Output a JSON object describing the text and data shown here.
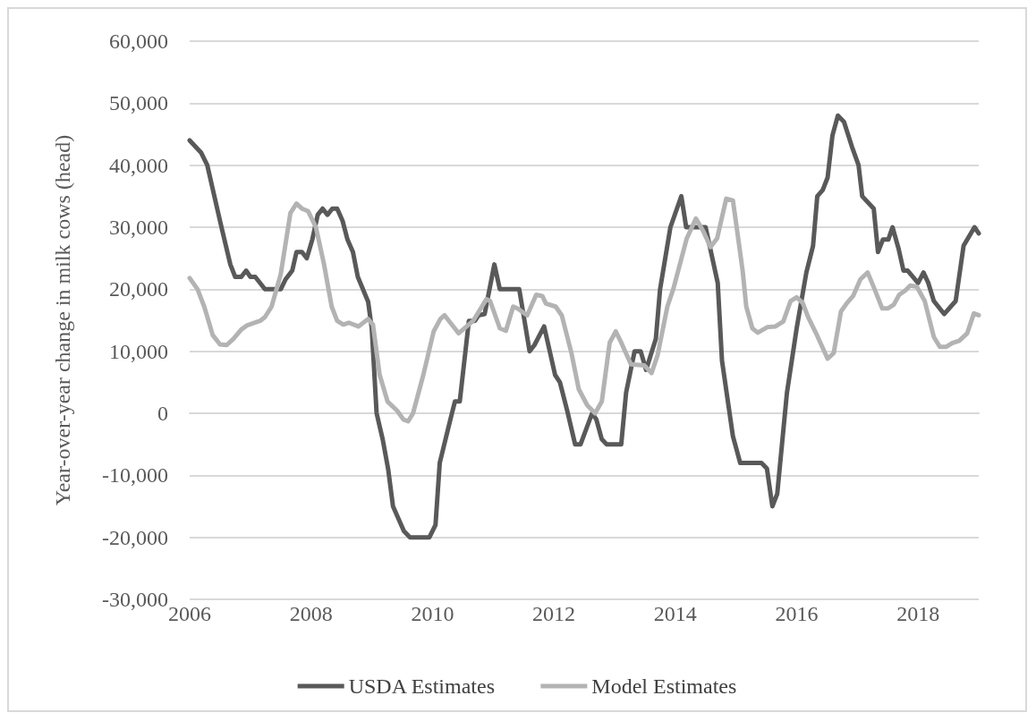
{
  "chart_data": {
    "type": "line",
    "ylabel": "Year-over-year change in milk cows (head)",
    "xlim": [
      2006,
      2019
    ],
    "xticks": [
      2006,
      2008,
      2010,
      2012,
      2014,
      2016,
      2018
    ],
    "ylim": [
      -30000,
      60000
    ],
    "yticks": [
      {
        "value": -30000,
        "label": "-30,000"
      },
      {
        "value": -20000,
        "label": "-20,000"
      },
      {
        "value": -10000,
        "label": "-10,000"
      },
      0,
      {
        "value": 10000,
        "label": "10,000"
      },
      {
        "value": 20000,
        "label": "20,000"
      },
      {
        "value": 30000,
        "label": "30,000"
      },
      {
        "value": 40000,
        "label": "40,000"
      },
      {
        "value": 50000,
        "label": "50,000"
      },
      {
        "value": 60000,
        "label": "60,000"
      }
    ],
    "grid": "y",
    "legend": "bottom",
    "marker": "none",
    "line_style": "solid",
    "series": [
      {
        "name": "USDA Estimates",
        "color": "#595959",
        "x": [
          2006.0,
          2006.19,
          2006.29,
          2006.5,
          2006.67,
          2006.75,
          2006.85,
          2006.93,
          2007.0,
          2007.08,
          2007.24,
          2007.5,
          2007.58,
          2007.69,
          2007.76,
          2007.85,
          2007.93,
          2008.02,
          2008.11,
          2008.19,
          2008.27,
          2008.35,
          2008.43,
          2008.52,
          2008.6,
          2008.69,
          2008.77,
          2008.94,
          2009.0,
          2009.08,
          2009.18,
          2009.27,
          2009.35,
          2009.53,
          2009.63,
          2009.95,
          2010.05,
          2010.12,
          2010.28,
          2010.37,
          2010.45,
          2010.6,
          2010.7,
          2010.76,
          2010.86,
          2011.02,
          2011.11,
          2011.43,
          2011.6,
          2011.68,
          2011.84,
          2012.02,
          2012.1,
          2012.22,
          2012.35,
          2012.44,
          2012.63,
          2012.7,
          2012.79,
          2012.87,
          2013.11,
          2013.19,
          2013.33,
          2013.43,
          2013.52,
          2013.68,
          2013.75,
          2013.92,
          2014.1,
          2014.18,
          2014.5,
          2014.7,
          2014.77,
          2014.95,
          2015.07,
          2015.42,
          2015.51,
          2015.6,
          2015.68,
          2015.84,
          2016.0,
          2016.16,
          2016.27,
          2016.34,
          2016.43,
          2016.51,
          2016.59,
          2016.68,
          2016.78,
          2016.91,
          2017.02,
          2017.08,
          2017.27,
          2017.34,
          2017.42,
          2017.51,
          2017.58,
          2017.68,
          2017.76,
          2017.83,
          2018.0,
          2018.09,
          2018.17,
          2018.26,
          2018.43,
          2018.62,
          2018.75,
          2018.93,
          2019.0
        ],
        "values": [
          44000,
          42000,
          40000,
          31000,
          24000,
          22000,
          22000,
          23000,
          22000,
          22000,
          20000,
          20000,
          21600,
          23000,
          26000,
          26000,
          25000,
          28000,
          32000,
          33000,
          32000,
          33000,
          33000,
          31000,
          28000,
          26000,
          22000,
          18000,
          13700,
          0,
          -4200,
          -9000,
          -15000,
          -19000,
          -20000,
          -20000,
          -18000,
          -8000,
          -1600,
          1900,
          1900,
          14900,
          14900,
          15800,
          16000,
          24000,
          20000,
          20000,
          10000,
          11000,
          14000,
          6200,
          5000,
          400,
          -5000,
          -5000,
          0,
          -1000,
          -4200,
          -5000,
          -5000,
          3300,
          10000,
          10000,
          7000,
          12000,
          20000,
          30000,
          35000,
          30000,
          30000,
          21000,
          8500,
          -3700,
          -8000,
          -8000,
          -8900,
          -15000,
          -13000,
          3300,
          13700,
          22700,
          27000,
          35000,
          36000,
          38000,
          44800,
          48000,
          47000,
          43000,
          40000,
          35000,
          33000,
          26000,
          28000,
          28000,
          30000,
          26500,
          23000,
          23000,
          21000,
          22700,
          21000,
          18100,
          16000,
          18100,
          27000,
          30000,
          29000
        ]
      },
      {
        "name": "Model Estimates",
        "color": "#b3b3b3",
        "x": [
          2006.0,
          2006.13,
          2006.24,
          2006.38,
          2006.5,
          2006.61,
          2006.72,
          2006.85,
          2006.95,
          2007.16,
          2007.24,
          2007.35,
          2007.5,
          2007.66,
          2007.76,
          2007.85,
          2007.95,
          2008.08,
          2008.21,
          2008.34,
          2008.43,
          2008.53,
          2008.62,
          2008.78,
          2008.94,
          2009.02,
          2009.13,
          2009.26,
          2009.42,
          2009.52,
          2009.6,
          2009.68,
          2009.85,
          2010.02,
          2010.13,
          2010.2,
          2010.43,
          2010.67,
          2010.89,
          2010.95,
          2011.11,
          2011.21,
          2011.33,
          2011.4,
          2011.56,
          2011.71,
          2011.81,
          2011.87,
          2012.03,
          2012.13,
          2012.29,
          2012.41,
          2012.55,
          2012.68,
          2012.79,
          2012.92,
          2013.02,
          2013.11,
          2013.27,
          2013.49,
          2013.61,
          2013.71,
          2013.87,
          2013.97,
          2014.19,
          2014.34,
          2014.46,
          2014.58,
          2014.69,
          2014.84,
          2014.95,
          2015.02,
          2015.11,
          2015.17,
          2015.27,
          2015.36,
          2015.52,
          2015.65,
          2015.78,
          2015.9,
          2016.0,
          2016.1,
          2016.19,
          2016.32,
          2016.51,
          2016.61,
          2016.73,
          2016.83,
          2016.93,
          2017.05,
          2017.17,
          2017.28,
          2017.41,
          2017.5,
          2017.6,
          2017.69,
          2017.79,
          2017.87,
          2017.98,
          2018.11,
          2018.26,
          2018.36,
          2018.46,
          2018.56,
          2018.68,
          2018.81,
          2018.92,
          2019.0
        ],
        "values": [
          21800,
          20000,
          17200,
          12600,
          11100,
          11000,
          12000,
          13500,
          14200,
          14900,
          15500,
          17200,
          22400,
          32300,
          33800,
          33000,
          32600,
          30000,
          24200,
          17200,
          14900,
          14300,
          14600,
          14000,
          15200,
          14300,
          6200,
          1900,
          400,
          -1000,
          -1300,
          0,
          6200,
          13200,
          15200,
          15800,
          12900,
          14900,
          18400,
          18100,
          13700,
          13300,
          17200,
          16900,
          15800,
          19100,
          18900,
          17700,
          17200,
          15800,
          9700,
          3900,
          1300,
          0,
          1900,
          11400,
          13200,
          11400,
          7900,
          7700,
          6500,
          9400,
          17200,
          20100,
          28200,
          31400,
          29400,
          26800,
          28200,
          34600,
          34300,
          29400,
          23000,
          17200,
          13700,
          13000,
          13900,
          14000,
          14800,
          18100,
          18700,
          17800,
          15500,
          12900,
          8800,
          9700,
          16400,
          17800,
          18900,
          21600,
          22700,
          20100,
          16900,
          16900,
          17500,
          19100,
          19800,
          20600,
          20400,
          18100,
          12300,
          10700,
          10700,
          11300,
          11700,
          12900,
          16100,
          15800
        ]
      }
    ]
  }
}
